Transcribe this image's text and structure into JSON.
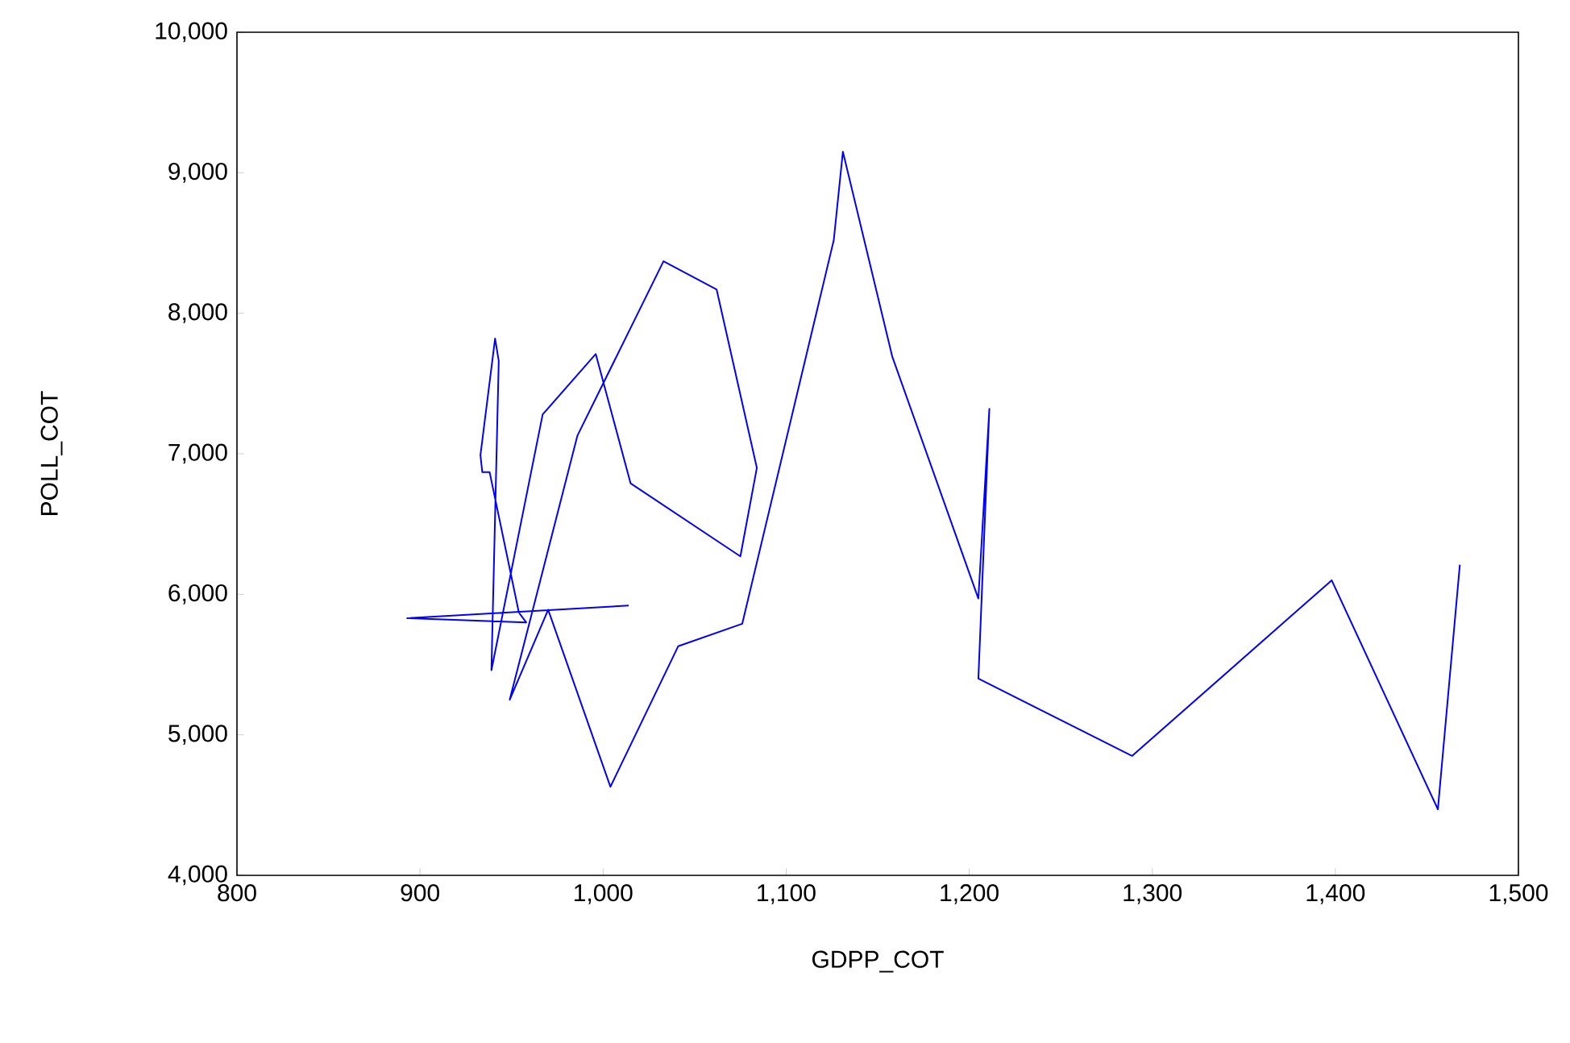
{
  "chart_data": {
    "type": "line",
    "xlabel": "GDPP_COT",
    "ylabel": "POLL_COT",
    "color": "#0000ff",
    "xlim": [
      800,
      1500
    ],
    "ylim": [
      4000,
      10000
    ],
    "xticks": [
      800,
      900,
      {
        "value": 1000,
        "label": "1,000"
      },
      {
        "value": 1100,
        "label": "1,100"
      },
      {
        "value": 1200,
        "label": "1,200"
      },
      {
        "value": 1300,
        "label": "1,300"
      },
      {
        "value": 1400,
        "label": "1,400"
      },
      {
        "value": 1500,
        "label": "1,500"
      }
    ],
    "yticks": [
      {
        "value": 4000,
        "label": "4,000"
      },
      {
        "value": 5000,
        "label": "5,000"
      },
      {
        "value": 6000,
        "label": "6,000"
      },
      {
        "value": 7000,
        "label": "7,000"
      },
      {
        "value": 8000,
        "label": "8,000"
      },
      {
        "value": 9000,
        "label": "9,000"
      },
      {
        "value": 10000,
        "label": "10,000"
      }
    ],
    "x": [
      1014,
      893,
      958,
      954,
      938,
      934,
      933,
      941,
      943,
      939,
      967,
      996,
      1015,
      1075,
      1084,
      1062,
      1033,
      986,
      949,
      970,
      1004,
      1041,
      1076,
      1126,
      1131,
      1158,
      1205,
      1211,
      1205,
      1289,
      1398,
      1456,
      1468
    ],
    "values": [
      5920,
      5830,
      5800,
      5870,
      6870,
      6870,
      6990,
      7820,
      7660,
      5460,
      7280,
      7710,
      6790,
      6270,
      6900,
      8170,
      8370,
      7130,
      5250,
      5890,
      4630,
      5630,
      5790,
      8520,
      9150,
      7690,
      5970,
      7320,
      5400,
      4850,
      6100,
      4470,
      6210
    ],
    "grid": false
  }
}
